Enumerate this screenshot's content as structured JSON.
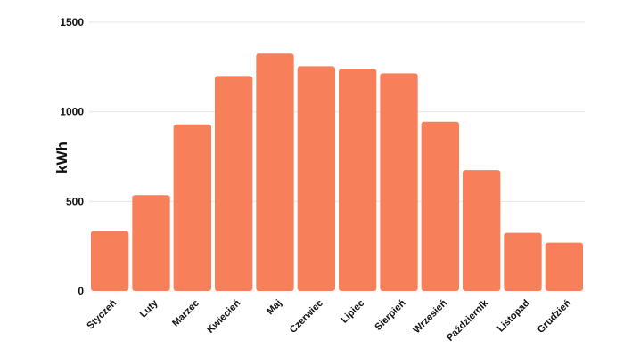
{
  "chart_data": {
    "type": "bar",
    "categories": [
      "Styczeń",
      "Luty",
      "Marzec",
      "Kwiecień",
      "Maj",
      "Czerwiec",
      "Lipiec",
      "Sierpień",
      "Wrzesień",
      "Październik",
      "Listopad",
      "Grudzień"
    ],
    "values": [
      335,
      535,
      930,
      1200,
      1325,
      1255,
      1240,
      1215,
      945,
      675,
      325,
      270
    ],
    "title": "",
    "xlabel": "",
    "ylabel": "kWh",
    "ylim": [
      0,
      1500
    ],
    "yticks": [
      0,
      500,
      1000,
      1500
    ],
    "ytick_labels": [
      "0",
      "500",
      "1000",
      "1500"
    ],
    "grid": true,
    "legend": "none",
    "colors": {
      "bar": "#f77f59",
      "grid": "#e6e6e6",
      "text": "#111111"
    }
  }
}
